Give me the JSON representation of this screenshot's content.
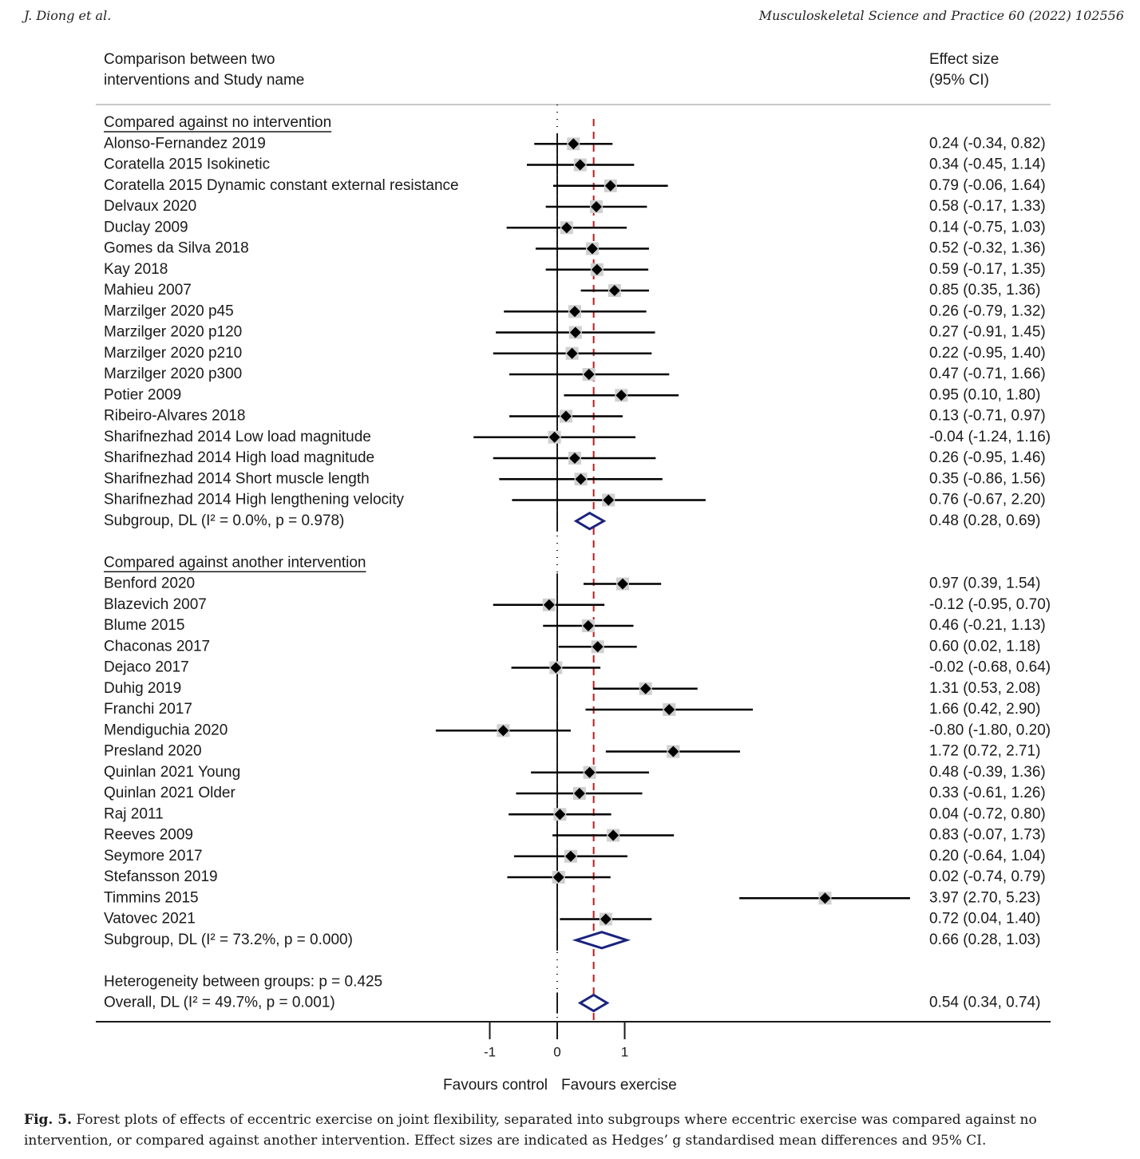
{
  "header": {
    "left": "J. Diong et al.",
    "right": "Musculoskeletal Science and Practice 60 (2022) 102556"
  },
  "caption": {
    "label": "Fig. 5.",
    "text": "Forest plots of effects of eccentric exercise on joint flexibility, separated into subgroups where eccentric exercise was compared against no intervention, or compared against another intervention. Effect sizes are indicated as Hedges’ g standardised mean differences and 95% CI."
  },
  "chart_data": {
    "type": "forest",
    "column_headers": {
      "left": [
        "Comparison between two",
        "interventions and Study name"
      ],
      "right": [
        "Effect size",
        "(95% CI)"
      ]
    },
    "xaxis": {
      "ticks": [
        -1,
        0,
        1
      ],
      "tick_labels": [
        "-1",
        "0",
        "1"
      ],
      "label_left": "Favours control",
      "label_right": "Favours exercise"
    },
    "null_line": 0,
    "overall_line": 0.54,
    "colors": {
      "marker": "#000000",
      "diamond": "#1a237e",
      "overall_line": "#b71c1c"
    },
    "rows": [
      {
        "kind": "group",
        "label": "Compared against no intervention"
      },
      {
        "kind": "study",
        "label": "Alonso-Fernandez 2019",
        "es": 0.24,
        "lo": -0.34,
        "hi": 0.82,
        "text": "0.24 (-0.34, 0.82)"
      },
      {
        "kind": "study",
        "label": "Coratella 2015 Isokinetic",
        "es": 0.34,
        "lo": -0.45,
        "hi": 1.14,
        "text": "0.34 (-0.45, 1.14)"
      },
      {
        "kind": "study",
        "label": "Coratella 2015 Dynamic constant external resistance",
        "es": 0.79,
        "lo": -0.06,
        "hi": 1.64,
        "text": "0.79 (-0.06, 1.64)"
      },
      {
        "kind": "study",
        "label": "Delvaux 2020",
        "es": 0.58,
        "lo": -0.17,
        "hi": 1.33,
        "text": "0.58 (-0.17, 1.33)"
      },
      {
        "kind": "study",
        "label": "Duclay 2009",
        "es": 0.14,
        "lo": -0.75,
        "hi": 1.03,
        "text": "0.14 (-0.75, 1.03)"
      },
      {
        "kind": "study",
        "label": "Gomes da Silva 2018",
        "es": 0.52,
        "lo": -0.32,
        "hi": 1.36,
        "text": "0.52 (-0.32, 1.36)"
      },
      {
        "kind": "study",
        "label": "Kay 2018",
        "es": 0.59,
        "lo": -0.17,
        "hi": 1.35,
        "text": "0.59 (-0.17, 1.35)"
      },
      {
        "kind": "study",
        "label": "Mahieu 2007",
        "es": 0.85,
        "lo": 0.35,
        "hi": 1.36,
        "text": "0.85 (0.35, 1.36)"
      },
      {
        "kind": "study",
        "label": "Marzilger 2020 p45",
        "es": 0.26,
        "lo": -0.79,
        "hi": 1.32,
        "text": "0.26 (-0.79, 1.32)"
      },
      {
        "kind": "study",
        "label": "Marzilger 2020 p120",
        "es": 0.27,
        "lo": -0.91,
        "hi": 1.45,
        "text": "0.27 (-0.91, 1.45)"
      },
      {
        "kind": "study",
        "label": "Marzilger 2020 p210",
        "es": 0.22,
        "lo": -0.95,
        "hi": 1.4,
        "text": "0.22 (-0.95, 1.40)"
      },
      {
        "kind": "study",
        "label": "Marzilger 2020 p300",
        "es": 0.47,
        "lo": -0.71,
        "hi": 1.66,
        "text": "0.47 (-0.71, 1.66)"
      },
      {
        "kind": "study",
        "label": "Potier 2009",
        "es": 0.95,
        "lo": 0.1,
        "hi": 1.8,
        "text": "0.95 (0.10, 1.80)"
      },
      {
        "kind": "study",
        "label": "Ribeiro-Alvares 2018",
        "es": 0.13,
        "lo": -0.71,
        "hi": 0.97,
        "text": "0.13 (-0.71, 0.97)"
      },
      {
        "kind": "study",
        "label": "Sharifnezhad 2014 Low load magnitude",
        "es": -0.04,
        "lo": -1.24,
        "hi": 1.16,
        "text": "-0.04 (-1.24, 1.16)"
      },
      {
        "kind": "study",
        "label": "Sharifnezhad 2014 High load magnitude",
        "es": 0.26,
        "lo": -0.95,
        "hi": 1.46,
        "text": "0.26 (-0.95, 1.46)"
      },
      {
        "kind": "study",
        "label": "Sharifnezhad 2014 Short muscle length",
        "es": 0.35,
        "lo": -0.86,
        "hi": 1.56,
        "text": "0.35 (-0.86, 1.56)"
      },
      {
        "kind": "study",
        "label": "Sharifnezhad 2014 High lengthening velocity",
        "es": 0.76,
        "lo": -0.67,
        "hi": 2.2,
        "text": "0.76 (-0.67, 2.20)"
      },
      {
        "kind": "subgroup",
        "label": "Subgroup, DL (I² = 0.0%, p = 0.978)",
        "es": 0.48,
        "lo": 0.28,
        "hi": 0.69,
        "text": "0.48 (0.28, 0.69)"
      },
      {
        "kind": "blank"
      },
      {
        "kind": "group",
        "label": "Compared against another intervention"
      },
      {
        "kind": "study",
        "label": "Benford 2020",
        "es": 0.97,
        "lo": 0.39,
        "hi": 1.54,
        "text": "0.97 (0.39, 1.54)"
      },
      {
        "kind": "study",
        "label": "Blazevich 2007",
        "es": -0.12,
        "lo": -0.95,
        "hi": 0.7,
        "text": "-0.12 (-0.95, 0.70)"
      },
      {
        "kind": "study",
        "label": "Blume 2015",
        "es": 0.46,
        "lo": -0.21,
        "hi": 1.13,
        "text": "0.46 (-0.21, 1.13)"
      },
      {
        "kind": "study",
        "label": "Chaconas 2017",
        "es": 0.6,
        "lo": 0.02,
        "hi": 1.18,
        "text": "0.60 (0.02, 1.18)"
      },
      {
        "kind": "study",
        "label": "Dejaco 2017",
        "es": -0.02,
        "lo": -0.68,
        "hi": 0.64,
        "text": "-0.02 (-0.68, 0.64)"
      },
      {
        "kind": "study",
        "label": "Duhig 2019",
        "es": 1.31,
        "lo": 0.53,
        "hi": 2.08,
        "text": "1.31 (0.53, 2.08)"
      },
      {
        "kind": "study",
        "label": "Franchi 2017",
        "es": 1.66,
        "lo": 0.42,
        "hi": 2.9,
        "text": "1.66 (0.42, 2.90)"
      },
      {
        "kind": "study",
        "label": "Mendiguchia 2020",
        "es": -0.8,
        "lo": -1.8,
        "hi": 0.2,
        "text": "-0.80 (-1.80, 0.20)"
      },
      {
        "kind": "study",
        "label": "Presland 2020",
        "es": 1.72,
        "lo": 0.72,
        "hi": 2.71,
        "text": "1.72 (0.72, 2.71)"
      },
      {
        "kind": "study",
        "label": "Quinlan 2021 Young",
        "es": 0.48,
        "lo": -0.39,
        "hi": 1.36,
        "text": "0.48 (-0.39, 1.36)"
      },
      {
        "kind": "study",
        "label": "Quinlan 2021 Older",
        "es": 0.33,
        "lo": -0.61,
        "hi": 1.26,
        "text": "0.33 (-0.61, 1.26)"
      },
      {
        "kind": "study",
        "label": "Raj 2011",
        "es": 0.04,
        "lo": -0.72,
        "hi": 0.8,
        "text": "0.04 (-0.72, 0.80)"
      },
      {
        "kind": "study",
        "label": "Reeves 2009",
        "es": 0.83,
        "lo": -0.07,
        "hi": 1.73,
        "text": "0.83 (-0.07, 1.73)"
      },
      {
        "kind": "study",
        "label": "Seymore 2017",
        "es": 0.2,
        "lo": -0.64,
        "hi": 1.04,
        "text": "0.20 (-0.64, 1.04)"
      },
      {
        "kind": "study",
        "label": "Stefansson 2019",
        "es": 0.02,
        "lo": -0.74,
        "hi": 0.79,
        "text": "0.02 (-0.74, 0.79)"
      },
      {
        "kind": "study",
        "label": "Timmins 2015",
        "es": 3.97,
        "lo": 2.7,
        "hi": 5.23,
        "text": "3.97 (2.70, 5.23)"
      },
      {
        "kind": "study",
        "label": "Vatovec 2021",
        "es": 0.72,
        "lo": 0.04,
        "hi": 1.4,
        "text": "0.72 (0.04, 1.40)"
      },
      {
        "kind": "subgroup",
        "label": "Subgroup, DL (I² = 73.2%, p = 0.000)",
        "es": 0.66,
        "lo": 0.28,
        "hi": 1.03,
        "text": "0.66 (0.28, 1.03)"
      },
      {
        "kind": "blank"
      },
      {
        "kind": "note",
        "label": "Heterogeneity between groups: p = 0.425"
      },
      {
        "kind": "overall",
        "label": "Overall, DL (I² = 49.7%, p = 0.001)",
        "es": 0.54,
        "lo": 0.34,
        "hi": 0.74,
        "text": "0.54 (0.34, 0.74)"
      }
    ]
  }
}
